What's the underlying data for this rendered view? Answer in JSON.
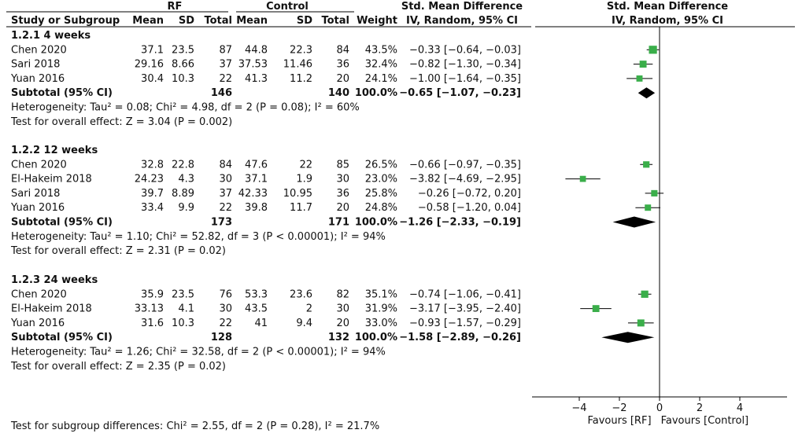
{
  "chart_data": {
    "type": "forest",
    "header": {
      "rf_group": "RF",
      "control_group": "Control",
      "effect_col": "Std. Mean Difference",
      "effect_sub": "IV, Random, 95% CI",
      "plot_title": "Std. Mean Difference",
      "plot_sub": "IV, Random, 95% CI",
      "study_col": "Study or Subgroup",
      "mean": "Mean",
      "sd": "SD",
      "total": "Total",
      "mean2": "Mean",
      "sd2": "SD",
      "total2": "Total",
      "weight": "Weight"
    },
    "subgroups": [
      {
        "title": "1.2.1 4 weeks",
        "studies": [
          {
            "name": "Chen 2020",
            "rf_mean": "37.1",
            "rf_sd": "23.5",
            "rf_n": "87",
            "c_mean": "44.8",
            "c_sd": "22.3",
            "c_n": "84",
            "weight": "43.5%",
            "ci_text": "−0.33 [−0.64, −0.03]",
            "est": -0.33,
            "lo": -0.64,
            "hi": -0.03,
            "w": 43.5
          },
          {
            "name": "Sari 2018",
            "rf_mean": "29.16",
            "rf_sd": "8.66",
            "rf_n": "37",
            "c_mean": "37.53",
            "c_sd": "11.46",
            "c_n": "36",
            "weight": "32.4%",
            "ci_text": "−0.82 [−1.30, −0.34]",
            "est": -0.82,
            "lo": -1.3,
            "hi": -0.34,
            "w": 32.4
          },
          {
            "name": "Yuan 2016",
            "rf_mean": "30.4",
            "rf_sd": "10.3",
            "rf_n": "22",
            "c_mean": "41.3",
            "c_sd": "11.2",
            "c_n": "20",
            "weight": "24.1%",
            "ci_text": "−1.00 [−1.64, −0.35]",
            "est": -1.0,
            "lo": -1.64,
            "hi": -0.35,
            "w": 24.1
          }
        ],
        "subtotal": {
          "label": "Subtotal (95% CI)",
          "rf_n": "146",
          "c_n": "140",
          "weight": "100.0%",
          "ci_text": "−0.65 [−1.07, −0.23]",
          "est": -0.65,
          "lo": -1.07,
          "hi": -0.23
        },
        "heterogeneity": "Heterogeneity: Tau² = 0.08; Chi² = 4.98, df = 2 (P = 0.08); I² = 60%",
        "overall": "Test for overall effect: Z = 3.04 (P = 0.002)"
      },
      {
        "title": "1.2.2 12 weeks",
        "studies": [
          {
            "name": "Chen 2020",
            "rf_mean": "32.8",
            "rf_sd": "22.8",
            "rf_n": "84",
            "c_mean": "47.6",
            "c_sd": "22",
            "c_n": "85",
            "weight": "26.5%",
            "ci_text": "−0.66 [−0.97, −0.35]",
            "est": -0.66,
            "lo": -0.97,
            "hi": -0.35,
            "w": 26.5
          },
          {
            "name": "El-Hakeim 2018",
            "rf_mean": "24.23",
            "rf_sd": "4.3",
            "rf_n": "30",
            "c_mean": "37.1",
            "c_sd": "1.9",
            "c_n": "30",
            "weight": "23.0%",
            "ci_text": "−3.82 [−4.69, −2.95]",
            "est": -3.82,
            "lo": -4.69,
            "hi": -2.95,
            "w": 23.0
          },
          {
            "name": "Sari 2018",
            "rf_mean": "39.7",
            "rf_sd": "8.89",
            "rf_n": "37",
            "c_mean": "42.33",
            "c_sd": "10.95",
            "c_n": "36",
            "weight": "25.8%",
            "ci_text": "−0.26 [−0.72, 0.20]",
            "est": -0.26,
            "lo": -0.72,
            "hi": 0.2,
            "w": 25.8
          },
          {
            "name": "Yuan 2016",
            "rf_mean": "33.4",
            "rf_sd": "9.9",
            "rf_n": "22",
            "c_mean": "39.8",
            "c_sd": "11.7",
            "c_n": "20",
            "weight": "24.8%",
            "ci_text": "−0.58 [−1.20, 0.04]",
            "est": -0.58,
            "lo": -1.2,
            "hi": 0.04,
            "w": 24.8
          }
        ],
        "subtotal": {
          "label": "Subtotal (95% CI)",
          "rf_n": "173",
          "c_n": "171",
          "weight": "100.0%",
          "ci_text": "−1.26 [−2.33, −0.19]",
          "est": -1.26,
          "lo": -2.33,
          "hi": -0.19
        },
        "heterogeneity": "Heterogeneity: Tau² = 1.10; Chi² = 52.82, df = 3 (P < 0.00001); I² = 94%",
        "overall": "Test for overall effect: Z = 2.31 (P = 0.02)"
      },
      {
        "title": "1.2.3 24 weeks",
        "studies": [
          {
            "name": "Chen 2020",
            "rf_mean": "35.9",
            "rf_sd": "23.5",
            "rf_n": "76",
            "c_mean": "53.3",
            "c_sd": "23.6",
            "c_n": "82",
            "weight": "35.1%",
            "ci_text": "−0.74 [−1.06, −0.41]",
            "est": -0.74,
            "lo": -1.06,
            "hi": -0.41,
            "w": 35.1
          },
          {
            "name": "El-Hakeim 2018",
            "rf_mean": "33.13",
            "rf_sd": "4.1",
            "rf_n": "30",
            "c_mean": "43.5",
            "c_sd": "2",
            "c_n": "30",
            "weight": "31.9%",
            "ci_text": "−3.17 [−3.95, −2.40]",
            "est": -3.17,
            "lo": -3.95,
            "hi": -2.4,
            "w": 31.9
          },
          {
            "name": "Yuan 2016",
            "rf_mean": "31.6",
            "rf_sd": "10.3",
            "rf_n": "22",
            "c_mean": "41",
            "c_sd": "9.4",
            "c_n": "20",
            "weight": "33.0%",
            "ci_text": "−0.93 [−1.57, −0.29]",
            "est": -0.93,
            "lo": -1.57,
            "hi": -0.29,
            "w": 33.0
          }
        ],
        "subtotal": {
          "label": "Subtotal (95% CI)",
          "rf_n": "128",
          "c_n": "132",
          "weight": "100.0%",
          "ci_text": "−1.58 [−2.89, −0.26]",
          "est": -1.58,
          "lo": -2.89,
          "hi": -0.26
        },
        "heterogeneity": "Heterogeneity: Tau² = 1.26; Chi² = 32.58, df = 2 (P < 0.00001); I² = 94%",
        "overall": "Test for overall effect: Z = 2.35 (P = 0.02)"
      }
    ],
    "subgroup_diff": "Test for subgroup differences: Chi² = 2.55, df = 2 (P = 0.28), I² = 21.7%",
    "axis": {
      "xlim": [
        -5,
        5
      ],
      "ticks": [
        -4,
        -2,
        0,
        2,
        4
      ],
      "tick_labels": [
        "−4",
        "−2",
        "0",
        "2",
        "4"
      ],
      "favours_left": "Favours [RF]",
      "favours_right": "Favours [Control]"
    },
    "colors": {
      "marker": "#3aae4a",
      "diamond": "#000000"
    }
  }
}
